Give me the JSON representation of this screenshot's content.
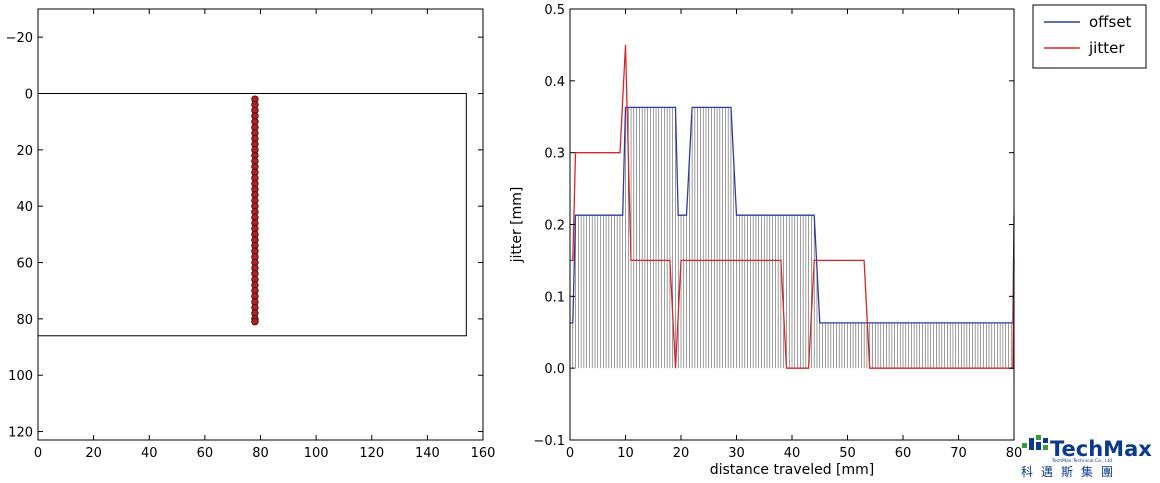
{
  "chart_data": [
    {
      "type": "scatter",
      "xlim": [
        0,
        160
      ],
      "ylim": [
        123,
        -30
      ],
      "y_inverted": true,
      "xticks": [
        0,
        20,
        40,
        60,
        80,
        100,
        120,
        140,
        160
      ],
      "yticks": [
        -20,
        0,
        20,
        40,
        60,
        80,
        100,
        120
      ],
      "rectangle": {
        "x0": 0,
        "y0": 0,
        "x1": 154,
        "y1": 86
      },
      "points": {
        "x": 78,
        "y": [
          2,
          4,
          6,
          8,
          10,
          12,
          14,
          16,
          18,
          20,
          22,
          24,
          26,
          28,
          30,
          32,
          34,
          36,
          38,
          40,
          42,
          44,
          46,
          48,
          50,
          52,
          54,
          56,
          58,
          60,
          62,
          64,
          66,
          68,
          70,
          72,
          74,
          76,
          78,
          80,
          81
        ],
        "color": "#b22222"
      },
      "grid": false
    },
    {
      "type": "line",
      "xlabel": "distance traveled [mm]",
      "ylabel": "jitter [mm]",
      "xlim": [
        0,
        80
      ],
      "ylim": [
        -0.1,
        0.5
      ],
      "xticks": [
        0,
        10,
        20,
        30,
        40,
        50,
        60,
        70,
        80
      ],
      "yticks": [
        -0.1,
        0.0,
        0.1,
        0.2,
        0.3,
        0.4,
        0.5
      ],
      "legend_position": "outside-right",
      "series": [
        {
          "name": "offset",
          "color": "#2b3ea0",
          "x": [
            0,
            0.5,
            1,
            9.5,
            10,
            19,
            19.5,
            21,
            22,
            24,
            29,
            30,
            44,
            45,
            79.8,
            80
          ],
          "y": [
            0.063,
            0.063,
            0.213,
            0.213,
            0.363,
            0.363,
            0.213,
            0.213,
            0.363,
            0.363,
            0.363,
            0.213,
            0.213,
            0.063,
            0.063,
            0.213
          ]
        },
        {
          "name": "jitter",
          "color": "#d62728",
          "x": [
            0,
            0.5,
            1,
            9,
            10,
            11,
            18,
            19,
            20,
            38,
            39,
            43,
            44,
            53,
            54,
            79.8,
            80
          ],
          "y": [
            0.15,
            0.15,
            0.3,
            0.3,
            0.45,
            0.15,
            0.15,
            0.0,
            0.15,
            0.15,
            0.0,
            0.0,
            0.15,
            0.15,
            0.0,
            0.0,
            0.15
          ]
        }
      ],
      "grid": false
    }
  ],
  "logo": {
    "brand": "TechMax",
    "tagline": "TechMax Technical Co., Ltd",
    "chinese": "科邁斯集團"
  },
  "colors": {
    "axis": "#000000",
    "offset": "#2b3ea0",
    "jitter": "#d62728",
    "stems": "#5a5a5a",
    "points": "#b22222",
    "logo_blue": "#0b3a8c",
    "logo_green": "#3a9a3a"
  }
}
